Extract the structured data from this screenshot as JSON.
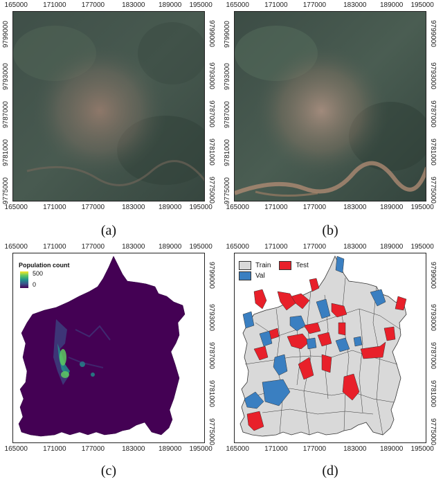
{
  "panels": {
    "a": {
      "caption": "(a)",
      "type": "satellite-image-early"
    },
    "b": {
      "caption": "(b)",
      "type": "satellite-image-late"
    },
    "c": {
      "caption": "(c)",
      "type": "population-raster",
      "legend": {
        "title": "Population count",
        "max": "500",
        "min": "0",
        "colors": [
          "#fde725",
          "#5ec962",
          "#21918c",
          "#3b528b",
          "#440154"
        ]
      }
    },
    "d": {
      "caption": "(d)",
      "type": "split-map",
      "legend": [
        {
          "label": "Train",
          "color": "#d9d9d9"
        },
        {
          "label": "Test",
          "color": "#e8202a"
        },
        {
          "label": "Val",
          "color": "#3a7fc1"
        }
      ]
    }
  },
  "axes": {
    "x_top": [
      "165000",
      "171000",
      "177000",
      "183000",
      "189000",
      "195000"
    ],
    "x_bottom": [
      "165000",
      "171000",
      "177000",
      "183000",
      "189000",
      "195000"
    ],
    "y_right": [
      "9799000",
      "9793000",
      "9787000",
      "9781000",
      "9775000"
    ],
    "y_left": [
      "9799000",
      "9793000",
      "9787000",
      "9781000",
      "9775000"
    ]
  }
}
